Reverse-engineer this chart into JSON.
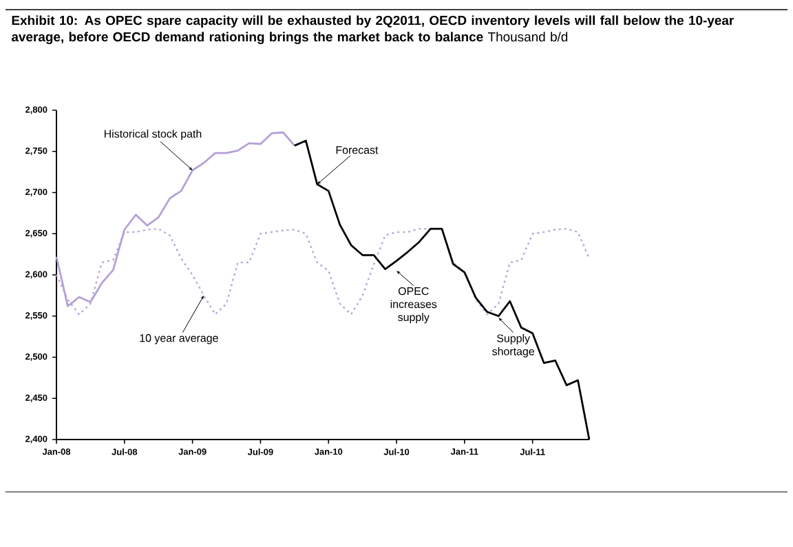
{
  "chart_data": {
    "type": "line",
    "title": "**Exhibit 10: As OPEC spare capacity will be exhausted by 2Q2011, OECD inventory levels will fall below the 10-year average, before OECD demand rationing brings the market back to balance** Thousand b/d",
    "xlim": [
      "2008-01",
      "2011-12"
    ],
    "ylim": [
      2400,
      2800
    ],
    "xticks": [
      {
        "value": "2008-01",
        "label": "Jan-08"
      },
      {
        "value": "2008-07",
        "label": "Jul-08"
      },
      {
        "value": "2009-01",
        "label": "Jan-09"
      },
      {
        "value": "2009-07",
        "label": "Jul-09"
      },
      {
        "value": "2010-01",
        "label": "Jan-10"
      },
      {
        "value": "2010-07",
        "label": "Jul-10"
      },
      {
        "value": "2011-01",
        "label": "Jan-11"
      },
      {
        "value": "2011-07",
        "label": "Jul-11"
      }
    ],
    "yticks": [
      {
        "value": 2400,
        "label": "2,400"
      },
      {
        "value": 2450,
        "label": "2,450"
      },
      {
        "value": 2500,
        "label": "2,500"
      },
      {
        "value": 2550,
        "label": "2,550"
      },
      {
        "value": 2600,
        "label": "2,600"
      },
      {
        "value": 2650,
        "label": "2,650"
      },
      {
        "value": 2700,
        "label": "2,700"
      },
      {
        "value": 2750,
        "label": "2,750"
      },
      {
        "value": 2800,
        "label": "2,800"
      }
    ],
    "grid": false,
    "marker": "none",
    "series": [
      {
        "name": "10 year average",
        "color": "#b8a6dc",
        "line_style": "dotted",
        "x": [
          "2008-01",
          "2008-02",
          "2008-03",
          "2008-04",
          "2008-05",
          "2008-06",
          "2008-07",
          "2008-08",
          "2008-09",
          "2008-10",
          "2008-11",
          "2008-12",
          "2009-01",
          "2009-02",
          "2009-03",
          "2009-04",
          "2009-05",
          "2009-06",
          "2009-07",
          "2009-08",
          "2009-09",
          "2009-10",
          "2009-11",
          "2009-12",
          "2010-01",
          "2010-02",
          "2010-03",
          "2010-04",
          "2010-05",
          "2010-06",
          "2010-07",
          "2010-08",
          "2010-09",
          "2010-10",
          "2010-11",
          "2010-12",
          "2011-01",
          "2011-02",
          "2011-03",
          "2011-04",
          "2011-05",
          "2011-06",
          "2011-07",
          "2011-08",
          "2011-09",
          "2011-10",
          "2011-11",
          "2011-12"
        ],
        "values": [
          2600,
          2570,
          2552,
          2565,
          2615,
          2618,
          2652,
          2652,
          2655,
          2656,
          2648,
          2620,
          2600,
          2575,
          2552,
          2565,
          2615,
          2615,
          2650,
          2652,
          2654,
          2655,
          2650,
          2615,
          2605,
          2565,
          2552,
          2575,
          2613,
          2648,
          2652,
          2652,
          2656,
          2656,
          2656,
          2615,
          2603,
          2570,
          2552,
          2565,
          2615,
          2618,
          2650,
          2652,
          2655,
          2656,
          2652,
          2620
        ]
      },
      {
        "name": "Historical stock path",
        "color": "#b4a0d8",
        "line_style": "solid",
        "x": [
          "2008-01",
          "2008-02",
          "2008-03",
          "2008-04",
          "2008-05",
          "2008-06",
          "2008-07",
          "2008-08",
          "2008-09",
          "2008-10",
          "2008-11",
          "2008-12",
          "2009-01",
          "2009-02",
          "2009-03",
          "2009-04",
          "2009-05",
          "2009-06",
          "2009-07",
          "2009-08",
          "2009-09",
          "2009-10"
        ],
        "values": [
          2622,
          2562,
          2573,
          2567,
          2590,
          2606,
          2655,
          2673,
          2660,
          2670,
          2693,
          2702,
          2727,
          2736,
          2748,
          2748,
          2751,
          2760,
          2759,
          2772,
          2773,
          2757
        ]
      },
      {
        "name": "Forecast",
        "color": "#000000",
        "line_style": "solid",
        "x": [
          "2009-10",
          "2009-11",
          "2009-12",
          "2010-01",
          "2010-02",
          "2010-03",
          "2010-04",
          "2010-05",
          "2010-06",
          "2010-07",
          "2010-08",
          "2010-09",
          "2010-10",
          "2010-11",
          "2010-12",
          "2011-01",
          "2011-02",
          "2011-03",
          "2011-04",
          "2011-05",
          "2011-06",
          "2011-07",
          "2011-08",
          "2011-09",
          "2011-10",
          "2011-11",
          "2011-12"
        ],
        "values": [
          2757,
          2763,
          2710,
          2702,
          2661,
          2636,
          2624,
          2624,
          2607,
          2617,
          2628,
          2640,
          2656,
          2656,
          2613,
          2603,
          2572,
          2555,
          2550,
          2568,
          2536,
          2529,
          2493,
          2496,
          2466,
          2472,
          2400
        ]
      }
    ],
    "annotations": [
      {
        "text": "OPEC increases supply",
        "x": "2010-07",
        "y": 2607
      },
      {
        "text": "Supply shortage",
        "x": "2011-04",
        "y": 2550
      }
    ]
  }
}
